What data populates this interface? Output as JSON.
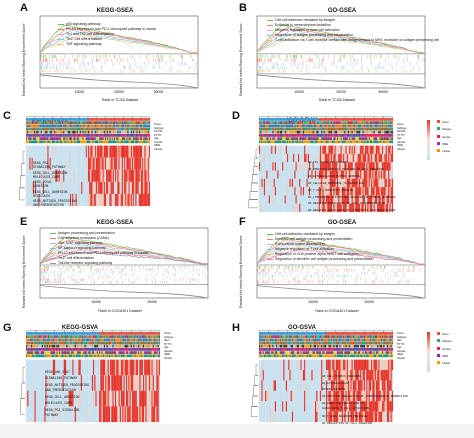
{
  "panels": {
    "A": {
      "label": "A",
      "title": "KEGG-GSEA",
      "ylabel": "Ranked list metric    Running Enrichment Score",
      "xlabel": "Rank in TCGA Dataset",
      "xticks": [
        "10000",
        "20000",
        "30000"
      ],
      "legend": [
        "p53 signaling pathway",
        "PD-L1 expression and PD-1 checkpoint pathway in cancer",
        "Th1 and Th2 cell differentiation",
        "Th17 cell differentiation",
        "TNF signaling pathway"
      ],
      "colors": [
        "#79b848",
        "#f07a6b",
        "#bdb0d8",
        "#7ccfd8",
        "#f1c17a"
      ]
    },
    "B": {
      "label": "B",
      "title": "GO-GSEA",
      "ylabel": "Ranked list metric    Running Enrichment Score",
      "xlabel": "Rank in TCGA Dataset",
      "xticks": [
        "10000",
        "20000",
        "30000"
      ],
      "legend": [
        "Cell-cell adhesion mediated by integrin",
        "Epithelial to mesenchymal transition",
        "Negative regulation of mast cell activation",
        "Regulation of antigen processing and presentation",
        "T-cell activation via T-cell receptor contact with antigen bound to MHC molecule on antigen presenting cell"
      ],
      "colors": [
        "#79b848",
        "#f07a6b",
        "#bdb0d8",
        "#7ccfd8",
        "#f1c17a"
      ]
    },
    "C": {
      "label": "C",
      "title": "KEGG-GSVA",
      "ann_rows": [
        "Score",
        "Subtype",
        "NLCSF",
        "TP TN",
        "Age",
        "Gender",
        "ISRE",
        "Cluster"
      ],
      "rows": [
        "KEGG_P53\nSIGNALING_PATHWAY",
        "KEGG_CELL_ADHESION\nMOLECULES_CAMS",
        "KEGG_FOCAL\nADHESION",
        "KEGG_CELL_ADHESION\nMOLECULES",
        "KEGG_ANTIGEN_PROCESSING\nAND_PRESENTATION"
      ]
    },
    "D": {
      "label": "D",
      "title": "GO-GSVA",
      "ann_rows": [
        "Score",
        "Subtype",
        "NLCSF",
        "TP TN",
        "Age",
        "Gender",
        "ISRE",
        "Cluster"
      ],
      "rows": [
        "GO_T4A_SIGNALING_PATHWAY",
        "GO_POSITIVE_COMPLEX_INVOLVED_IN_CELL_ADHESION",
        "GO_EXTRACELLULAR_MATRIX_BINDING",
        "GO_CELLULAR_RESPONSE_TO_RADIATION",
        "GO_T_CELL_APOPTOTIC_PROCESS",
        "GO_LYMPHOCYTE_ACTIVATION_INVOLVED_IN_IMMUNE_RESPONSE",
        "GO_NEGATIVE_REGULATION_OF_CELL_DIFFERENTIATION",
        "GO_NEGATIVE_REGULATION_OF_LYMPHOCYTE_DIFFERENTIATION"
      ],
      "legend": [
        "Score",
        "Subtype",
        "Gender",
        "ISRE",
        "Cluster"
      ]
    },
    "E": {
      "label": "E",
      "title": "KEGG-GSEA",
      "ylabel": "Ranked list metric    Running Enrichment Score",
      "xlabel": "Rank in CGGA301 Dataset",
      "xticks": [
        "10000",
        "20000"
      ],
      "legend": [
        "Antigen processing and presentation",
        "Cell adhesion molecules (CAMs)",
        "JAK-STAT signaling pathway",
        "NF-kappa B signaling pathway",
        "PD-L1 expression and PD-1 checkpoint pathway in cancer",
        "Th17 cell differentiation",
        "Toll-like receptor signaling pathway"
      ],
      "colors": [
        "#79b848",
        "#f07a6b",
        "#bdb0d8",
        "#7ccfd8",
        "#f1c17a",
        "#e879c8",
        "#9a9a9a"
      ]
    },
    "F": {
      "label": "F",
      "title": "GO-GSEA",
      "ylabel": "Ranked list metric    Running Enrichment Score",
      "xlabel": "Rank in CGGA301 Dataset",
      "xticks": [
        "10000",
        "20000"
      ],
      "legend": [
        "Cell-cell adhesion mediated by integrin",
        "Dendritic cell antigen processing and presentation",
        "Extracellular matrix disassembly",
        "Negative regulation of T cell activation",
        "Regulation of CD8 positive alpha beta T cell activation",
        "Regulation of dendritic cell antigen processing and presentation"
      ],
      "colors": [
        "#79b848",
        "#f07a6b",
        "#bdb0d8",
        "#7ccfd8",
        "#f1c17a",
        "#e879c8"
      ]
    },
    "G": {
      "label": "G",
      "title": "KEGG-GSVA",
      "ann_rows": [
        "Score",
        "Subtype",
        "IDH",
        "TP TN",
        "Age",
        "Gender",
        "ISRE",
        "Cluster"
      ],
      "rows": [
        "KEGG_JAK_STAT\nSIGNALING_PATHWAY",
        "KEGG_ANTIGEN_PROCESSING\nAND_PRESENTATION",
        "KEGG_CELL_ADHESION\nMOLECULES_CAMS",
        "KEGG_P53_SIGNALING\nPATHWAY"
      ]
    },
    "H": {
      "label": "H",
      "title": "GO-GSVA",
      "ann_rows": [
        "Score",
        "Subtype",
        "IDH",
        "TP TN",
        "Age",
        "Gender",
        "ISRE",
        "Cluster"
      ],
      "rows": [
        "GO_CELL_MATRIX_ADHESION",
        "GO_EXTRACELLULAR\nMATRIX_BINDING",
        "GO_POSITIVE_REGULATION_OF_IMMUNOGLOBULIN_PRODUCTION",
        "GO_NEGATIVE_REGULATION_OF\nALPHA_BETA_T_CELL_ACTIVATION",
        "GO_T_CELL_ADHESION_MOLECULE",
        "GO_REGULATION_OF_CELL_ADHESION"
      ]
    }
  },
  "palette": {
    "hot": "#e8352a",
    "cold": "#c8e0ee",
    "mid": "#f3c9b8"
  }
}
